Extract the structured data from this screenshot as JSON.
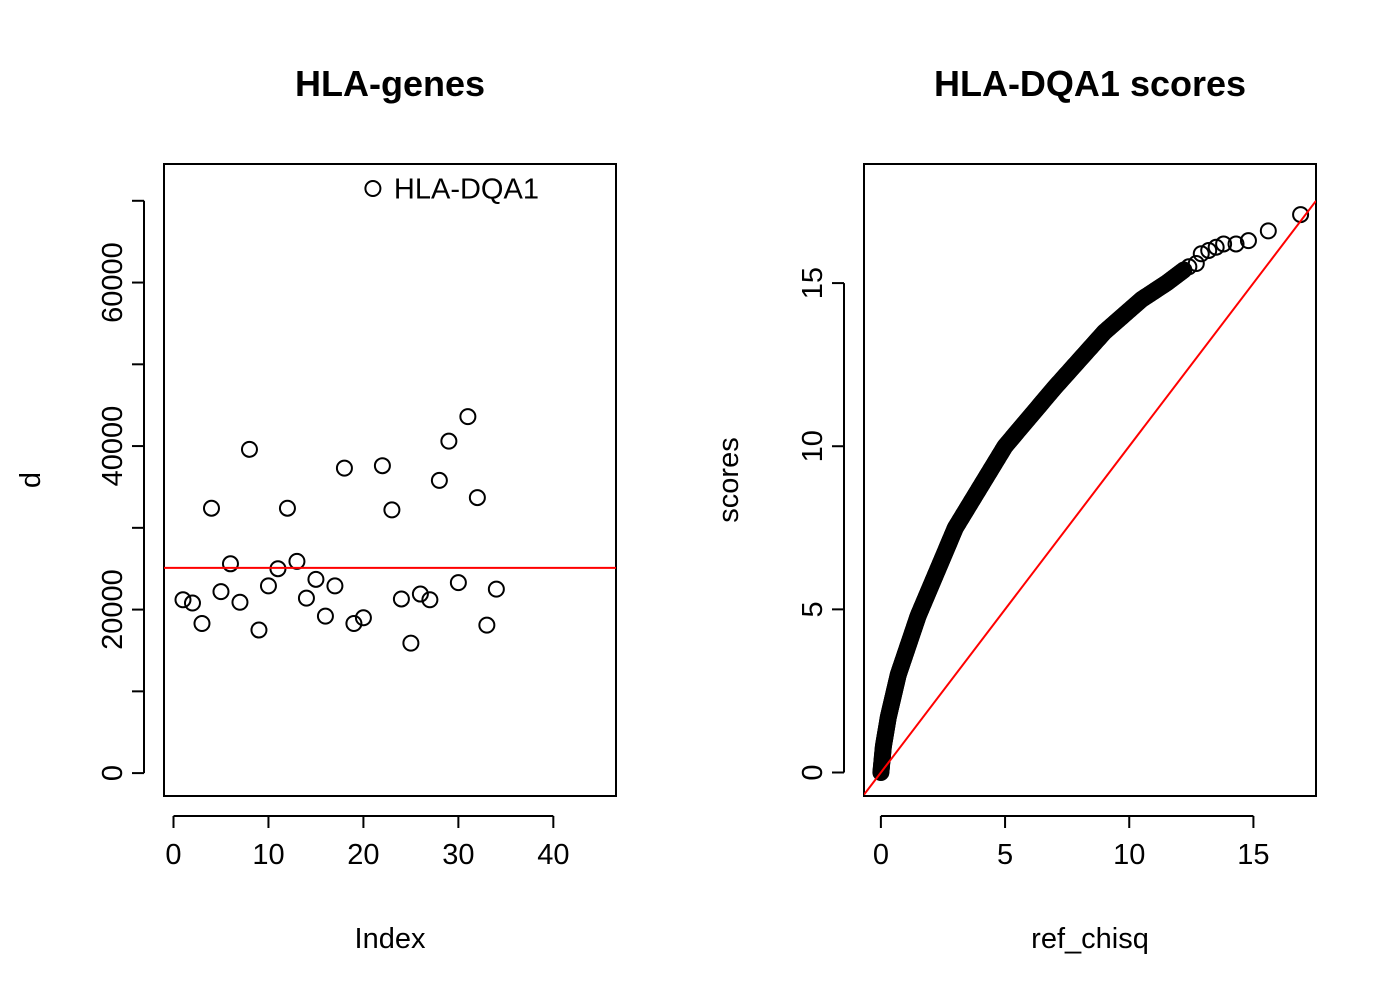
{
  "chart_data": [
    {
      "type": "scatter",
      "title": "HLA-genes",
      "xlabel": "Index",
      "ylabel": "d",
      "xlim": [
        -1,
        46.6
      ],
      "ylim": [
        -2800,
        74500
      ],
      "x_ticks": [
        0,
        10,
        20,
        30,
        40
      ],
      "x_tick_labels": [
        "0",
        "10",
        "20",
        "30",
        "40"
      ],
      "y_ticks": [
        0,
        10000,
        20000,
        30000,
        40000,
        50000,
        60000,
        70000
      ],
      "y_tick_labels": [
        "0",
        "",
        "20000",
        "",
        "40000",
        "",
        "60000",
        ""
      ],
      "point_color": "#000000",
      "points": [
        {
          "x": 1,
          "y": 21200
        },
        {
          "x": 2,
          "y": 20800
        },
        {
          "x": 3,
          "y": 18300
        },
        {
          "x": 4,
          "y": 32400
        },
        {
          "x": 5,
          "y": 22200
        },
        {
          "x": 6,
          "y": 25600
        },
        {
          "x": 7,
          "y": 20900
        },
        {
          "x": 8,
          "y": 39600
        },
        {
          "x": 9,
          "y": 17500
        },
        {
          "x": 10,
          "y": 22900
        },
        {
          "x": 11,
          "y": 25000
        },
        {
          "x": 12,
          "y": 32400
        },
        {
          "x": 13,
          "y": 25900
        },
        {
          "x": 14,
          "y": 21400
        },
        {
          "x": 15,
          "y": 23700
        },
        {
          "x": 16,
          "y": 19200
        },
        {
          "x": 17,
          "y": 22900
        },
        {
          "x": 18,
          "y": 37300
        },
        {
          "x": 19,
          "y": 18300
        },
        {
          "x": 20,
          "y": 19000
        },
        {
          "x": 21,
          "y": 71500
        },
        {
          "x": 22,
          "y": 37600
        },
        {
          "x": 23,
          "y": 32200
        },
        {
          "x": 24,
          "y": 21300
        },
        {
          "x": 25,
          "y": 15900
        },
        {
          "x": 26,
          "y": 21900
        },
        {
          "x": 27,
          "y": 21200
        },
        {
          "x": 28,
          "y": 35800
        },
        {
          "x": 29,
          "y": 40600
        },
        {
          "x": 30,
          "y": 23300
        },
        {
          "x": 31,
          "y": 43600
        },
        {
          "x": 32,
          "y": 33700
        },
        {
          "x": 33,
          "y": 18100
        },
        {
          "x": 34,
          "y": 22500
        }
      ],
      "hline": {
        "y": 25100,
        "color": "#ff0000"
      },
      "annotations": [
        {
          "x": 21,
          "y": 71500,
          "text": "HLA-DQA1"
        }
      ]
    },
    {
      "type": "scatter",
      "title": "HLA-DQA1 scores",
      "xlabel": "ref_chisq",
      "ylabel": "scores",
      "xlim": [
        -0.68,
        17.52
      ],
      "ylim": [
        -0.72,
        18.65
      ],
      "x_ticks": [
        0,
        5,
        10,
        15
      ],
      "x_tick_labels": [
        "0",
        "5",
        "10",
        "15"
      ],
      "y_ticks": [
        0,
        5,
        10,
        15
      ],
      "y_tick_labels": [
        "0",
        "5",
        "10",
        "15"
      ],
      "point_color": "#000000",
      "qq_curve": {
        "x": [
          0,
          0.1,
          0.3,
          0.7,
          1.5,
          3,
          5,
          7,
          9,
          10.5,
          11.5,
          12.2
        ],
        "y": [
          0,
          0.8,
          1.7,
          3.0,
          4.8,
          7.5,
          10.0,
          11.8,
          13.5,
          14.5,
          15.0,
          15.4
        ]
      },
      "tail_points": [
        {
          "x": 12.4,
          "y": 15.5
        },
        {
          "x": 12.7,
          "y": 15.6
        },
        {
          "x": 12.9,
          "y": 15.9
        },
        {
          "x": 13.2,
          "y": 16.0
        },
        {
          "x": 13.5,
          "y": 16.1
        },
        {
          "x": 13.8,
          "y": 16.2
        },
        {
          "x": 14.3,
          "y": 16.2
        },
        {
          "x": 14.8,
          "y": 16.3
        },
        {
          "x": 15.6,
          "y": 16.6
        },
        {
          "x": 16.9,
          "y": 17.1
        }
      ],
      "abline": {
        "intercept": 0,
        "slope": 1,
        "color": "#ff0000"
      }
    }
  ]
}
